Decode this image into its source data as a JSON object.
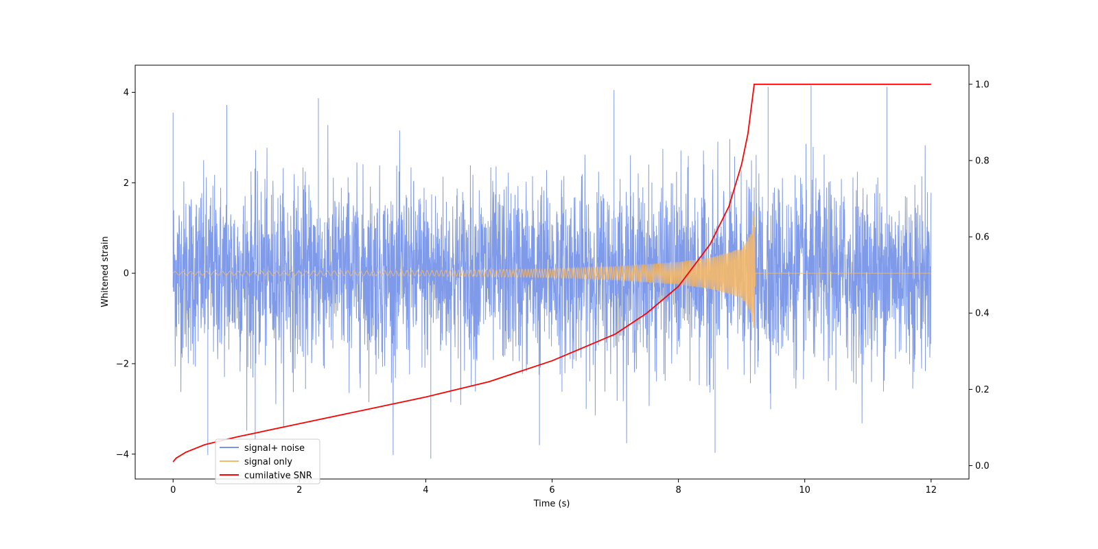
{
  "chart_data": {
    "type": "line",
    "title": "",
    "xlabel": "Time (s)",
    "ylabel": "Whitened strain",
    "y2label": "",
    "xlim": [
      -0.6,
      12.6
    ],
    "ylim": [
      -4.55,
      4.6
    ],
    "y2lim": [
      -0.035,
      1.05
    ],
    "x_ticks": [
      0,
      2,
      4,
      6,
      8,
      10,
      12
    ],
    "x_tick_labels": [
      "0",
      "2",
      "4",
      "6",
      "8",
      "10",
      "12"
    ],
    "y_ticks": [
      -4,
      -2,
      0,
      2,
      4
    ],
    "y_tick_labels": [
      "−4",
      "−2",
      "0",
      "2",
      "4"
    ],
    "y2_ticks": [
      0.0,
      0.2,
      0.4,
      0.6,
      0.8,
      1.0
    ],
    "y2_tick_labels": [
      "0.0",
      "0.2",
      "0.4",
      "0.6",
      "0.8",
      "1.0"
    ],
    "grid": false,
    "legend_position": "lower-left",
    "series": [
      {
        "name": "signal+ noise",
        "axis": "left",
        "color": "#7895e8",
        "noise_envelope": {
          "typical_abs_max": 2.6,
          "min": -4.1,
          "max": 4.15
        },
        "spikes": [
          {
            "x": 0.0,
            "y": 3.55
          },
          {
            "x": 0.85,
            "y": 3.72
          },
          {
            "x": 1.3,
            "y": -3.7
          },
          {
            "x": 2.3,
            "y": 3.87
          },
          {
            "x": 4.08,
            "y": -4.1
          },
          {
            "x": 6.98,
            "y": 4.05
          },
          {
            "x": 8.58,
            "y": -3.97
          },
          {
            "x": 9.42,
            "y": 4.12
          },
          {
            "x": 10.1,
            "y": 4.15
          },
          {
            "x": 11.3,
            "y": 4.12
          },
          {
            "x": 0.55,
            "y": -4.02
          },
          {
            "x": 5.8,
            "y": -3.8
          }
        ]
      },
      {
        "name": "signal only",
        "axis": "left",
        "color": "#f5b96a",
        "amplitude": [
          [
            0,
            0.04
          ],
          [
            2,
            0.05
          ],
          [
            4,
            0.06
          ],
          [
            6,
            0.1
          ],
          [
            7,
            0.15
          ],
          [
            8,
            0.25
          ],
          [
            8.5,
            0.35
          ],
          [
            9.0,
            0.55
          ],
          [
            9.15,
            0.9
          ],
          [
            9.2,
            1.35
          ],
          [
            9.22,
            0.0
          ],
          [
            12,
            0.0
          ]
        ]
      },
      {
        "name": "cumilative SNR",
        "axis": "right",
        "color": "#ff0000",
        "x": [
          0,
          0.05,
          0.2,
          0.5,
          1,
          2,
          3,
          4,
          5,
          6,
          7,
          7.5,
          8,
          8.5,
          8.8,
          9.0,
          9.1,
          9.2,
          12
        ],
        "y": [
          0.01,
          0.02,
          0.035,
          0.055,
          0.075,
          0.11,
          0.145,
          0.18,
          0.22,
          0.275,
          0.345,
          0.4,
          0.47,
          0.58,
          0.68,
          0.79,
          0.87,
          1.0,
          1.0
        ]
      }
    ]
  }
}
